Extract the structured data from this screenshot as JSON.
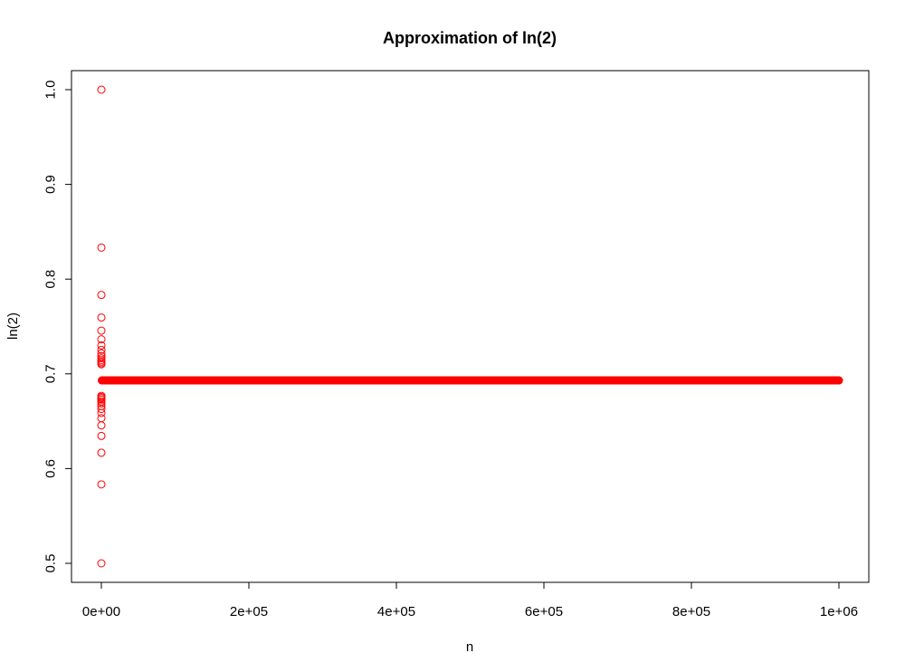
{
  "chart_data": {
    "type": "scatter",
    "title": "Approximation of ln(2)",
    "xlabel": "n",
    "ylabel": "ln(2)",
    "xlim": [
      0,
      1000000
    ],
    "ylim": [
      0.5,
      1.0
    ],
    "x_ticks": [
      {
        "value": 0,
        "label": "0e+00"
      },
      {
        "value": 200000,
        "label": "2e+05"
      },
      {
        "value": 400000,
        "label": "4e+05"
      },
      {
        "value": 600000,
        "label": "6e+05"
      },
      {
        "value": 800000,
        "label": "8e+05"
      },
      {
        "value": 1000000,
        "label": "1e+06"
      }
    ],
    "y_ticks": [
      {
        "value": 0.5,
        "label": "0.5"
      },
      {
        "value": 0.6,
        "label": "0.6"
      },
      {
        "value": 0.7,
        "label": "0.7"
      },
      {
        "value": 0.8,
        "label": "0.8"
      },
      {
        "value": 0.9,
        "label": "0.9"
      },
      {
        "value": 1.0,
        "label": "1.0"
      }
    ],
    "grid": false,
    "marker": "open-circle",
    "series": [
      {
        "color": "#ff0000",
        "points": [
          {
            "x": 1,
            "y": 1.0
          },
          {
            "x": 2,
            "y": 0.5
          },
          {
            "x": 3,
            "y": 0.8333
          },
          {
            "x": 4,
            "y": 0.5833
          },
          {
            "x": 5,
            "y": 0.7833
          },
          {
            "x": 6,
            "y": 0.6167
          },
          {
            "x": 7,
            "y": 0.7595
          },
          {
            "x": 8,
            "y": 0.6345
          },
          {
            "x": 9,
            "y": 0.7456
          },
          {
            "x": 10,
            "y": 0.6456
          },
          {
            "x": 11,
            "y": 0.7365
          },
          {
            "x": 12,
            "y": 0.6532
          },
          {
            "x": 13,
            "y": 0.7301
          },
          {
            "x": 14,
            "y": 0.6587
          },
          {
            "x": 15,
            "y": 0.7254
          },
          {
            "x": 16,
            "y": 0.6629
          },
          {
            "x": 17,
            "y": 0.7217
          },
          {
            "x": 18,
            "y": 0.6661
          },
          {
            "x": 19,
            "y": 0.7188
          },
          {
            "x": 20,
            "y": 0.6688
          },
          {
            "x": 21,
            "y": 0.7164
          },
          {
            "x": 22,
            "y": 0.6709
          },
          {
            "x": 23,
            "y": 0.7144
          },
          {
            "x": 24,
            "y": 0.6728
          },
          {
            "x": 25,
            "y": 0.7128
          },
          {
            "x": 26,
            "y": 0.6743
          },
          {
            "x": 27,
            "y": 0.7113
          },
          {
            "x": 28,
            "y": 0.6756
          },
          {
            "x": 29,
            "y": 0.7101
          },
          {
            "x": 30,
            "y": 0.6768
          },
          {
            "x": 1000000,
            "y": 0.6931
          }
        ],
        "converged_band": {
          "x_start": 30,
          "x_end": 1000000,
          "y": 0.6931
        }
      }
    ]
  }
}
